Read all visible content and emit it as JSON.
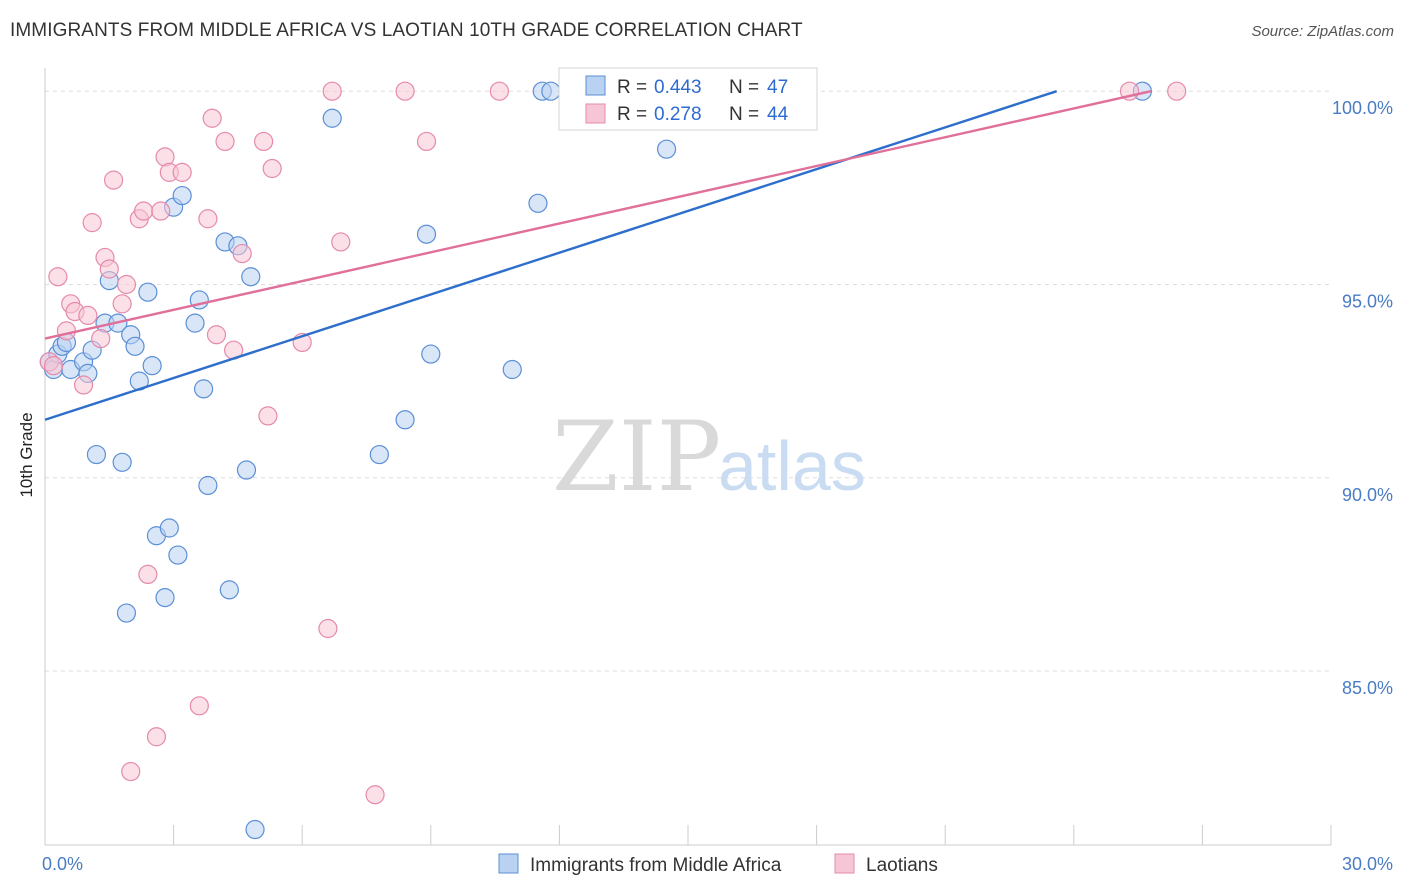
{
  "title": "IMMIGRANTS FROM MIDDLE AFRICA VS LAOTIAN 10TH GRADE CORRELATION CHART",
  "source": "Source: ZipAtlas.com",
  "watermark": {
    "zip": "ZIP",
    "atlas": "atlas"
  },
  "chart_data": {
    "type": "scatter",
    "title": "IMMIGRANTS FROM MIDDLE AFRICA VS LAOTIAN 10TH GRADE CORRELATION CHART",
    "xlabel": "",
    "ylabel": "10th Grade",
    "xlim": [
      0,
      30
    ],
    "ylim": [
      80.5,
      100.6
    ],
    "x_tick_labels": [
      "0.0%",
      "30.0%"
    ],
    "y_ticks": [
      85,
      90,
      95,
      100
    ],
    "y_tick_labels": [
      "85.0%",
      "90.0%",
      "95.0%",
      "100.0%"
    ],
    "grid": "horizontal dashed",
    "legend": {
      "placement": "top-center",
      "entries": [
        {
          "r_label": "R =",
          "r": "0.443",
          "n_label": "N =",
          "n": "47"
        },
        {
          "r_label": "R =",
          "r": "0.278",
          "n_label": "N =",
          "n": "44"
        }
      ]
    },
    "series": [
      {
        "name": "Immigrants from Middle Africa",
        "color": "#5b8fd6",
        "fill": "#b9d2f2",
        "line_color": "#2e6fcc",
        "trend": [
          [
            0,
            91.5
          ],
          [
            23.6,
            100.0
          ]
        ],
        "points": [
          [
            0.1,
            93.0
          ],
          [
            0.2,
            92.8
          ],
          [
            0.3,
            93.2
          ],
          [
            0.4,
            93.4
          ],
          [
            0.5,
            93.5
          ],
          [
            0.6,
            92.8
          ],
          [
            0.9,
            93.0
          ],
          [
            1.0,
            92.7
          ],
          [
            1.1,
            93.3
          ],
          [
            1.2,
            90.6
          ],
          [
            1.4,
            94.0
          ],
          [
            1.5,
            95.1
          ],
          [
            1.7,
            94.0
          ],
          [
            1.8,
            90.4
          ],
          [
            1.9,
            86.5
          ],
          [
            2.0,
            93.7
          ],
          [
            2.1,
            93.4
          ],
          [
            2.2,
            92.5
          ],
          [
            2.4,
            94.8
          ],
          [
            2.5,
            92.9
          ],
          [
            2.6,
            88.5
          ],
          [
            2.8,
            86.9
          ],
          [
            2.9,
            88.7
          ],
          [
            3.0,
            97.0
          ],
          [
            3.1,
            88.0
          ],
          [
            3.2,
            97.3
          ],
          [
            3.5,
            94.0
          ],
          [
            3.6,
            94.6
          ],
          [
            3.7,
            92.3
          ],
          [
            3.8,
            89.8
          ],
          [
            4.2,
            96.1
          ],
          [
            4.3,
            87.1
          ],
          [
            4.5,
            96.0
          ],
          [
            4.7,
            90.2
          ],
          [
            4.8,
            95.2
          ],
          [
            4.9,
            80.9
          ],
          [
            6.7,
            99.3
          ],
          [
            7.8,
            90.6
          ],
          [
            8.4,
            91.5
          ],
          [
            8.9,
            96.3
          ],
          [
            9.0,
            93.2
          ],
          [
            10.9,
            92.8
          ],
          [
            11.5,
            97.1
          ],
          [
            11.6,
            100.0
          ],
          [
            11.8,
            100.0
          ],
          [
            14.5,
            98.5
          ],
          [
            25.6,
            100.0
          ]
        ]
      },
      {
        "name": "Laotians",
        "color": "#e58aab",
        "fill": "#f7c6d6",
        "line_color": "#e0709a",
        "trend": [
          [
            0,
            93.6
          ],
          [
            25.8,
            100.0
          ]
        ],
        "points": [
          [
            0.1,
            93.0
          ],
          [
            0.2,
            92.9
          ],
          [
            0.3,
            95.2
          ],
          [
            0.5,
            93.8
          ],
          [
            0.6,
            94.5
          ],
          [
            0.7,
            94.3
          ],
          [
            0.9,
            92.4
          ],
          [
            1.0,
            94.2
          ],
          [
            1.1,
            96.6
          ],
          [
            1.3,
            93.6
          ],
          [
            1.4,
            95.7
          ],
          [
            1.5,
            95.4
          ],
          [
            1.6,
            97.7
          ],
          [
            1.8,
            94.5
          ],
          [
            1.9,
            95.0
          ],
          [
            2.0,
            82.4
          ],
          [
            2.2,
            96.7
          ],
          [
            2.3,
            96.9
          ],
          [
            2.4,
            87.5
          ],
          [
            2.6,
            83.3
          ],
          [
            2.7,
            96.9
          ],
          [
            2.8,
            98.3
          ],
          [
            2.9,
            97.9
          ],
          [
            3.2,
            97.9
          ],
          [
            3.6,
            84.1
          ],
          [
            3.8,
            96.7
          ],
          [
            3.9,
            99.3
          ],
          [
            4.0,
            93.7
          ],
          [
            4.2,
            98.7
          ],
          [
            4.4,
            93.3
          ],
          [
            4.6,
            95.8
          ],
          [
            5.1,
            98.7
          ],
          [
            5.2,
            91.6
          ],
          [
            5.3,
            98.0
          ],
          [
            6.0,
            93.5
          ],
          [
            6.6,
            86.1
          ],
          [
            6.7,
            100.0
          ],
          [
            6.9,
            96.1
          ],
          [
            7.7,
            81.8
          ],
          [
            8.4,
            100.0
          ],
          [
            8.9,
            98.7
          ],
          [
            10.6,
            100.0
          ],
          [
            25.3,
            100.0
          ],
          [
            26.4,
            100.0
          ]
        ]
      }
    ]
  }
}
